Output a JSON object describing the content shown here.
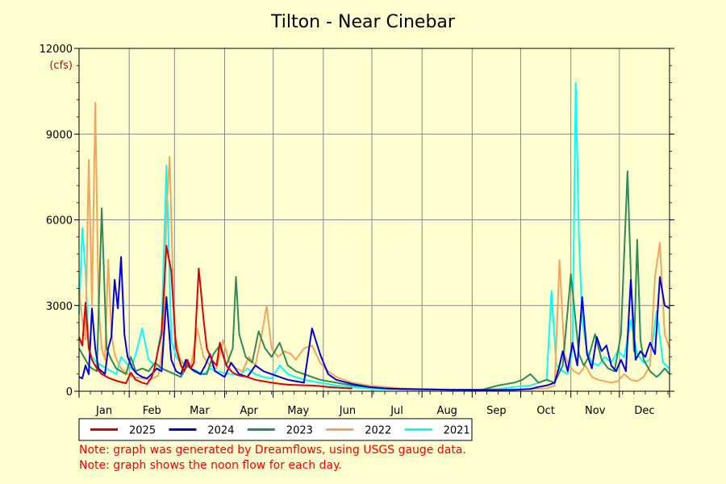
{
  "chart_data": {
    "type": "line",
    "title": "Tilton - Near Cinebar",
    "ylabel": "(cfs)",
    "ylim": [
      0,
      12000
    ],
    "yticks": [
      0,
      3000,
      6000,
      9000,
      12000
    ],
    "ytick_labels": [
      "0",
      "3000",
      "6000",
      "9000",
      "12000"
    ],
    "months": [
      "Jan",
      "Feb",
      "Mar",
      "Apr",
      "May",
      "Jun",
      "Jul",
      "Aug",
      "Sep",
      "Oct",
      "Nov",
      "Dec"
    ],
    "xlim": [
      1,
      366
    ],
    "grid": true,
    "legend_position": "bottom",
    "series": [
      {
        "name": "2025",
        "color": "#dd0000",
        "x": [
          1,
          3,
          5,
          7,
          9,
          12,
          15,
          20,
          25,
          30,
          33,
          36,
          40,
          43,
          46,
          48,
          50,
          52,
          55,
          58,
          61,
          64,
          66,
          68,
          70,
          72,
          75,
          78,
          80,
          83,
          86,
          88,
          92,
          96,
          100,
          105,
          110,
          115,
          120,
          125,
          130,
          135,
          140,
          145,
          150,
          155,
          160,
          165,
          170
        ],
        "y": [
          1900,
          1600,
          3100,
          1500,
          1100,
          800,
          600,
          450,
          350,
          280,
          650,
          400,
          300,
          250,
          500,
          900,
          1500,
          2000,
          5100,
          4200,
          1500,
          900,
          700,
          1100,
          800,
          1000,
          4300,
          2500,
          1500,
          1100,
          900,
          1700,
          900,
          650,
          550,
          500,
          400,
          350,
          300,
          260,
          230,
          220,
          210,
          200,
          180,
          150,
          130,
          110,
          100
        ]
      },
      {
        "name": "2024",
        "color": "#0000dd",
        "x": [
          1,
          3,
          5,
          7,
          9,
          11,
          13,
          15,
          17,
          19,
          21,
          23,
          25,
          27,
          29,
          31,
          34,
          37,
          40,
          43,
          46,
          49,
          52,
          55,
          58,
          61,
          64,
          67,
          70,
          73,
          76,
          79,
          82,
          85,
          88,
          91,
          95,
          100,
          105,
          110,
          115,
          120,
          125,
          130,
          135,
          140,
          145,
          150,
          155,
          160,
          170,
          180,
          190,
          200,
          210,
          220,
          230,
          240,
          250,
          260,
          270,
          280,
          285,
          290,
          295,
          298,
          300,
          303,
          306,
          309,
          312,
          315,
          318,
          321,
          324,
          327,
          330,
          333,
          336,
          339,
          342,
          345,
          348,
          351,
          354,
          357,
          360,
          363,
          366
        ],
        "y": [
          500,
          450,
          900,
          600,
          2900,
          1500,
          800,
          700,
          600,
          1500,
          1900,
          3900,
          2900,
          4700,
          2000,
          1200,
          800,
          600,
          500,
          450,
          600,
          800,
          700,
          3300,
          1100,
          700,
          600,
          1100,
          800,
          700,
          600,
          900,
          1300,
          700,
          600,
          500,
          1000,
          600,
          500,
          900,
          700,
          600,
          500,
          400,
          350,
          300,
          2200,
          1300,
          600,
          400,
          250,
          150,
          100,
          80,
          70,
          60,
          50,
          50,
          45,
          45,
          50,
          80,
          150,
          200,
          300,
          900,
          1400,
          700,
          1700,
          900,
          3300,
          1300,
          800,
          1900,
          1400,
          1600,
          900,
          700,
          1100,
          700,
          3900,
          1100,
          1400,
          1200,
          1700,
          1300,
          4000,
          3000,
          2900
        ]
      },
      {
        "name": "2023",
        "color": "#2e8b57",
        "x": [
          1,
          3,
          5,
          7,
          9,
          12,
          15,
          18,
          21,
          24,
          27,
          30,
          33,
          36,
          40,
          44,
          48,
          52,
          56,
          60,
          64,
          68,
          72,
          76,
          80,
          84,
          88,
          92,
          96,
          98,
          100,
          104,
          108,
          112,
          116,
          120,
          125,
          130,
          135,
          140,
          145,
          150,
          160,
          170,
          180,
          190,
          200,
          210,
          220,
          230,
          240,
          250,
          260,
          270,
          275,
          280,
          285,
          290,
          295,
          300,
          305,
          310,
          313,
          316,
          320,
          324,
          328,
          332,
          336,
          340,
          342,
          344,
          346,
          348,
          350,
          352,
          354,
          356,
          358,
          360,
          363,
          366
        ],
        "y": [
          1500,
          1300,
          1100,
          900,
          800,
          700,
          6400,
          1500,
          1100,
          800,
          700,
          600,
          1200,
          700,
          800,
          700,
          1000,
          800,
          700,
          600,
          500,
          900,
          700,
          600,
          600,
          1300,
          1600,
          900,
          1500,
          4000,
          2000,
          1200,
          1000,
          2100,
          1500,
          1200,
          1700,
          900,
          700,
          600,
          500,
          400,
          300,
          200,
          150,
          100,
          80,
          70,
          60,
          55,
          50,
          50,
          200,
          300,
          400,
          600,
          300,
          400,
          300,
          900,
          4100,
          1300,
          900,
          1200,
          2000,
          1100,
          800,
          700,
          2000,
          7700,
          4200,
          1400,
          5300,
          1800,
          1100,
          900,
          700,
          600,
          500,
          600,
          800,
          600
        ]
      },
      {
        "name": "2022",
        "color": "#f4a460",
        "x": [
          1,
          3,
          5,
          7,
          9,
          11,
          13,
          15,
          17,
          19,
          21,
          23,
          25,
          27,
          29,
          31,
          35,
          40,
          45,
          50,
          53,
          55,
          57,
          60,
          63,
          66,
          70,
          74,
          78,
          82,
          86,
          90,
          94,
          98,
          102,
          106,
          110,
          114,
          117,
          120,
          124,
          128,
          132,
          135,
          140,
          145,
          150,
          155,
          160,
          170,
          180,
          190,
          200,
          210,
          220,
          230,
          240,
          250,
          260,
          270,
          280,
          290,
          295,
          298,
          301,
          304,
          307,
          310,
          314,
          318,
          322,
          326,
          330,
          334,
          338,
          342,
          346,
          350,
          354,
          357,
          360,
          363,
          366
        ],
        "y": [
          3500,
          2500,
          1800,
          8100,
          3000,
          10100,
          3000,
          1500,
          1100,
          4600,
          2000,
          1300,
          1000,
          800,
          700,
          600,
          500,
          450,
          400,
          550,
          1700,
          6300,
          8200,
          2000,
          1200,
          900,
          800,
          2200,
          1200,
          900,
          800,
          1800,
          1000,
          800,
          700,
          1200,
          900,
          2000,
          3000,
          1500,
          1200,
          1400,
          1300,
          1100,
          1500,
          1600,
          1000,
          700,
          500,
          300,
          200,
          150,
          100,
          80,
          70,
          60,
          55,
          50,
          50,
          60,
          80,
          100,
          200,
          4600,
          1300,
          900,
          700,
          600,
          900,
          500,
          400,
          350,
          300,
          350,
          600,
          400,
          350,
          500,
          900,
          4000,
          5200,
          2000,
          1500
        ]
      },
      {
        "name": "2021",
        "color": "#00ffff",
        "x": [
          1,
          3,
          5,
          7,
          9,
          12,
          15,
          18,
          21,
          24,
          27,
          30,
          33,
          36,
          40,
          44,
          48,
          52,
          55,
          58,
          61,
          64,
          67,
          70,
          74,
          78,
          82,
          86,
          90,
          95,
          100,
          105,
          110,
          115,
          120,
          125,
          130,
          140,
          150,
          160,
          170,
          180,
          190,
          200,
          210,
          220,
          230,
          240,
          250,
          260,
          270,
          280,
          285,
          290,
          293,
          296,
          300,
          303,
          306,
          308,
          310,
          312,
          315,
          318,
          322,
          326,
          330,
          334,
          338,
          342,
          346,
          350,
          354,
          358,
          362,
          366
        ],
        "y": [
          2700,
          5700,
          4200,
          1500,
          1200,
          1000,
          900,
          800,
          700,
          600,
          1200,
          1000,
          800,
          1300,
          2200,
          1100,
          900,
          2200,
          7900,
          1800,
          1200,
          1000,
          900,
          800,
          700,
          600,
          800,
          700,
          650,
          600,
          550,
          800,
          600,
          500,
          450,
          900,
          600,
          400,
          300,
          200,
          150,
          100,
          80,
          70,
          60,
          60,
          55,
          50,
          60,
          80,
          150,
          200,
          300,
          400,
          3500,
          900,
          700,
          600,
          1500,
          10800,
          5400,
          2500,
          1400,
          1000,
          900,
          1200,
          1000,
          1400,
          1200,
          2500,
          1300,
          1000,
          1100,
          2800,
          1000,
          800
        ]
      }
    ]
  },
  "notes": [
    "Note: graph was generated by Dreamflows, using USGS gauge data.",
    "Note: graph shows the noon flow for each day."
  ]
}
